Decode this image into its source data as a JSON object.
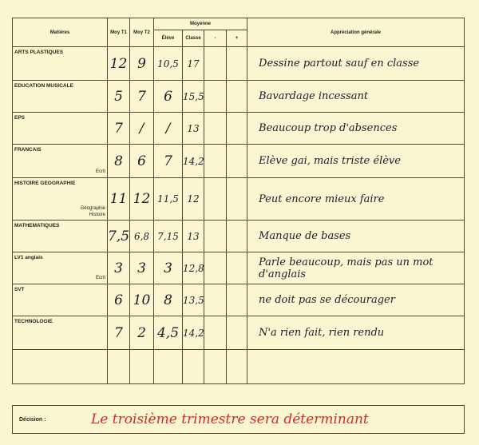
{
  "headers": {
    "subject": "Matières",
    "t1": "Moy T1",
    "t2": "Moy T2",
    "moyenne": "Moyenne",
    "eleve": "Élève",
    "classe": "Classe",
    "minus": "-",
    "plus": "+",
    "appreciation": "Appréciation générale"
  },
  "rows": [
    {
      "subject": "ARTS PLASTIQUES",
      "sub": "",
      "t1": "12",
      "t2": "9",
      "eleve": "10,5",
      "classe": "17",
      "appreciation": "Dessine partout sauf en classe"
    },
    {
      "subject": "EDUCATION MUSICALE",
      "sub": "",
      "t1": "5",
      "t2": "7",
      "eleve": "6",
      "classe": "15,5",
      "appreciation": "Bavardage incessant"
    },
    {
      "subject": "EPS",
      "sub": "",
      "t1": "7",
      "t2": "/",
      "eleve": "/",
      "classe": "13",
      "appreciation": "Beaucoup trop d'absences"
    },
    {
      "subject": "FRANCAIS",
      "sub": "Ecrit",
      "t1": "8",
      "t2": "6",
      "eleve": "7",
      "classe": "14,2",
      "appreciation": "Elève gai, mais triste élève"
    },
    {
      "subject": "HISTOIRE GEOGRAPHIE",
      "sub": "Géographie\nHistoire",
      "t1": "11",
      "t2": "12",
      "eleve": "11,5",
      "classe": "12",
      "appreciation": "Peut encore mieux faire"
    },
    {
      "subject": "MATHEMATIQUES",
      "sub": "",
      "t1": "7,5",
      "t2": "6,8",
      "eleve": "7,15",
      "classe": "13",
      "appreciation": "Manque de bases"
    },
    {
      "subject": "LV1 anglais",
      "sub": "Ecrit",
      "t1": "3",
      "t2": "3",
      "eleve": "3",
      "classe": "12,8",
      "appreciation": "Parle beaucoup, mais pas un mot d'anglais"
    },
    {
      "subject": "SVT",
      "sub": "",
      "t1": "6",
      "t2": "10",
      "eleve": "8",
      "classe": "13,5",
      "appreciation": "ne doit pas se décourager"
    },
    {
      "subject": "TECHNOLOGIE",
      "sub": "",
      "t1": "7",
      "t2": "2",
      "eleve": "4,5",
      "classe": "14,2",
      "appreciation": "N'a rien fait, rien rendu"
    }
  ],
  "decision": {
    "label": "Décision :",
    "text": "Le troisième trimestre sera déterminant"
  },
  "colors": {
    "ink": "#1e1a28",
    "red_ink": "#d42a2a",
    "paper": "#fbf6d2"
  }
}
